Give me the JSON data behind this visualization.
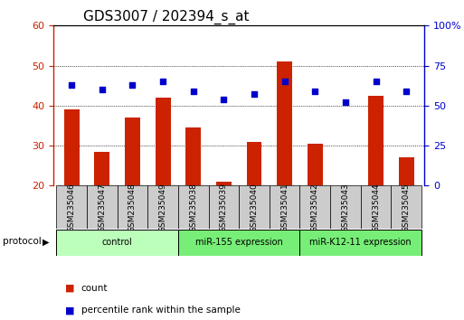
{
  "title": "GDS3007 / 202394_s_at",
  "categories": [
    "GSM235046",
    "GSM235047",
    "GSM235048",
    "GSM235049",
    "GSM235038",
    "GSM235039",
    "GSM235040",
    "GSM235041",
    "GSM235042",
    "GSM235043",
    "GSM235044",
    "GSM235045"
  ],
  "count_values": [
    39,
    28.5,
    37,
    42,
    34.5,
    21,
    31,
    51,
    30.5,
    20,
    42.5,
    27
  ],
  "percentile_values": [
    63,
    60,
    63,
    65,
    59,
    54,
    57,
    65,
    59,
    52,
    65,
    59
  ],
  "ylim_left": [
    20,
    60
  ],
  "ylim_right": [
    0,
    100
  ],
  "yticks_left": [
    20,
    30,
    40,
    50,
    60
  ],
  "yticks_right": [
    0,
    25,
    50,
    75,
    100
  ],
  "left_color": "#cc2200",
  "right_color": "#0000cc",
  "bar_color": "#cc2200",
  "dot_color": "#0000cc",
  "bar_width": 0.5,
  "dot_size": 25,
  "title_fontsize": 11,
  "tick_fontsize": 8,
  "group_labels": [
    "control",
    "miR-155 expression",
    "miR-K12-11 expression"
  ],
  "group_starts": [
    0,
    4,
    8
  ],
  "group_ends": [
    3,
    7,
    11
  ],
  "group_colors": [
    "#bbffbb",
    "#77ee77",
    "#77ee77"
  ],
  "protocol_label": "protocol",
  "legend_items": [
    {
      "color": "#cc2200",
      "label": "count"
    },
    {
      "color": "#0000cc",
      "label": "percentile rank within the sample"
    }
  ]
}
